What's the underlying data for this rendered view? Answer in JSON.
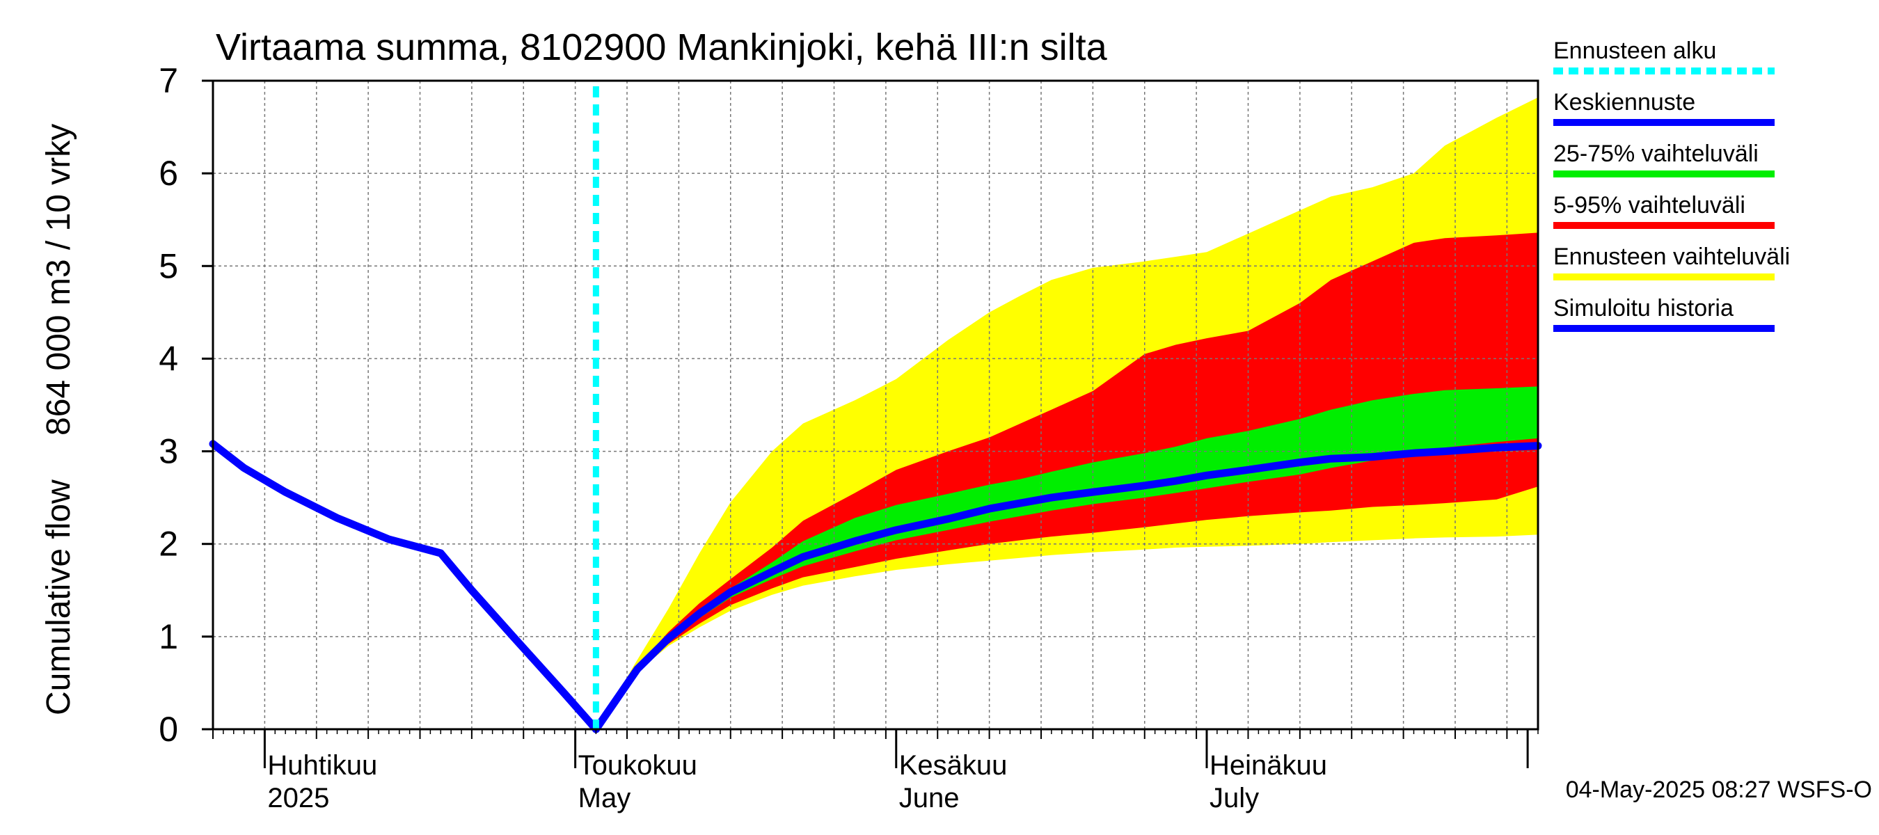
{
  "chart_data": {
    "type": "area",
    "title": "Virtaama summa, 8102900 Mankinjoki, kehä III:n silta",
    "ylabel_lines": [
      "Cumulative flow",
      "864 000 m3 / 10 vrky"
    ],
    "ylim": [
      0,
      7
    ],
    "yticks": [
      0,
      1,
      2,
      3,
      4,
      5,
      6,
      7
    ],
    "xlim": [
      "2025-03-27",
      "2025-08-02"
    ],
    "month_labels": [
      {
        "date": "2025-04-01",
        "fi": "Huhtikuu",
        "en": "2025"
      },
      {
        "date": "2025-05-01",
        "fi": "Toukokuu",
        "en": "May"
      },
      {
        "date": "2025-06-01",
        "fi": "Kesäkuu",
        "en": "June"
      },
      {
        "date": "2025-07-01",
        "fi": "Heinäkuu",
        "en": "July"
      }
    ],
    "month_ticks": [
      "2025-04-01",
      "2025-05-01",
      "2025-06-01",
      "2025-07-01",
      "2025-08-01"
    ],
    "forecast_start": "2025-05-03",
    "history": {
      "name": "Simuloitu historia",
      "color": "#0000ff",
      "x": [
        "2025-03-27",
        "2025-03-30",
        "2025-04-03",
        "2025-04-08",
        "2025-04-13",
        "2025-04-18",
        "2025-04-21",
        "2025-04-25",
        "2025-04-30",
        "2025-05-03"
      ],
      "y": [
        3.08,
        2.82,
        2.56,
        2.28,
        2.05,
        1.9,
        1.5,
        1.0,
        0.38,
        0.0
      ]
    },
    "bands": {
      "x": [
        "2025-05-03",
        "2025-05-07",
        "2025-05-10",
        "2025-05-13",
        "2025-05-16",
        "2025-05-20",
        "2025-05-23",
        "2025-05-28",
        "2025-06-01",
        "2025-06-06",
        "2025-06-10",
        "2025-06-13",
        "2025-06-16",
        "2025-06-20",
        "2025-06-25",
        "2025-06-28",
        "2025-07-01",
        "2025-07-05",
        "2025-07-10",
        "2025-07-13",
        "2025-07-17",
        "2025-07-21",
        "2025-07-24",
        "2025-07-29",
        "2025-08-02"
      ],
      "p0": [
        0.0,
        0.62,
        0.9,
        1.1,
        1.28,
        1.45,
        1.55,
        1.65,
        1.72,
        1.78,
        1.82,
        1.85,
        1.88,
        1.91,
        1.94,
        1.96,
        1.97,
        1.98,
        2.0,
        2.02,
        2.04,
        2.06,
        2.07,
        2.08,
        2.1
      ],
      "p5": [
        0.0,
        0.62,
        0.92,
        1.14,
        1.34,
        1.52,
        1.64,
        1.75,
        1.84,
        1.93,
        2.0,
        2.04,
        2.08,
        2.12,
        2.18,
        2.22,
        2.26,
        2.3,
        2.34,
        2.36,
        2.4,
        2.42,
        2.44,
        2.48,
        2.62
      ],
      "p25": [
        0.0,
        0.63,
        0.95,
        1.2,
        1.42,
        1.62,
        1.76,
        1.92,
        2.04,
        2.15,
        2.24,
        2.3,
        2.36,
        2.43,
        2.5,
        2.55,
        2.6,
        2.67,
        2.75,
        2.82,
        2.9,
        2.98,
        3.04,
        3.1,
        3.14
      ],
      "p50": [
        0.0,
        0.65,
        0.98,
        1.25,
        1.48,
        1.7,
        1.86,
        2.03,
        2.15,
        2.27,
        2.38,
        2.44,
        2.5,
        2.56,
        2.63,
        2.68,
        2.74,
        2.8,
        2.88,
        2.92,
        2.94,
        2.98,
        3.0,
        3.04,
        3.06
      ],
      "p75": [
        0.0,
        0.66,
        1.0,
        1.28,
        1.52,
        1.8,
        2.03,
        2.28,
        2.42,
        2.54,
        2.64,
        2.7,
        2.78,
        2.88,
        2.98,
        3.05,
        3.14,
        3.22,
        3.35,
        3.45,
        3.55,
        3.62,
        3.66,
        3.68,
        3.7
      ],
      "p95": [
        0.0,
        0.68,
        1.05,
        1.36,
        1.62,
        1.96,
        2.25,
        2.55,
        2.8,
        3.0,
        3.15,
        3.3,
        3.45,
        3.65,
        4.05,
        4.15,
        4.22,
        4.3,
        4.6,
        4.85,
        5.05,
        5.25,
        5.3,
        5.33,
        5.36
      ],
      "p100": [
        0.0,
        0.75,
        1.3,
        1.9,
        2.45,
        3.0,
        3.3,
        3.55,
        3.78,
        4.2,
        4.5,
        4.68,
        4.85,
        4.98,
        5.05,
        5.1,
        5.15,
        5.35,
        5.6,
        5.75,
        5.85,
        6.0,
        6.3,
        6.6,
        6.82
      ]
    },
    "colors": {
      "full_range": "#ffff00",
      "p5_95": "#ff0000",
      "p25_75": "#00ee00",
      "median": "#0000ff",
      "forecast_start": "#00ffff",
      "grid": "#777777"
    },
    "legend": [
      {
        "label": "Ennusteen alku",
        "color": "#00ffff",
        "dashed": true
      },
      {
        "label": "Keskiennuste",
        "color": "#0000ff",
        "dashed": false
      },
      {
        "label": "25-75% vaihteluväli",
        "color": "#00ee00",
        "dashed": false
      },
      {
        "label": "5-95% vaihteluväli",
        "color": "#ff0000",
        "dashed": false
      },
      {
        "label": "Ennusteen vaihteluväli",
        "color": "#ffff00",
        "dashed": false
      },
      {
        "label": "Simuloitu historia",
        "color": "#0000ff",
        "dashed": false
      }
    ],
    "legend_position": "right",
    "grid": true
  },
  "footer": {
    "timestamp": "04-May-2025 08:27 WSFS-O"
  }
}
